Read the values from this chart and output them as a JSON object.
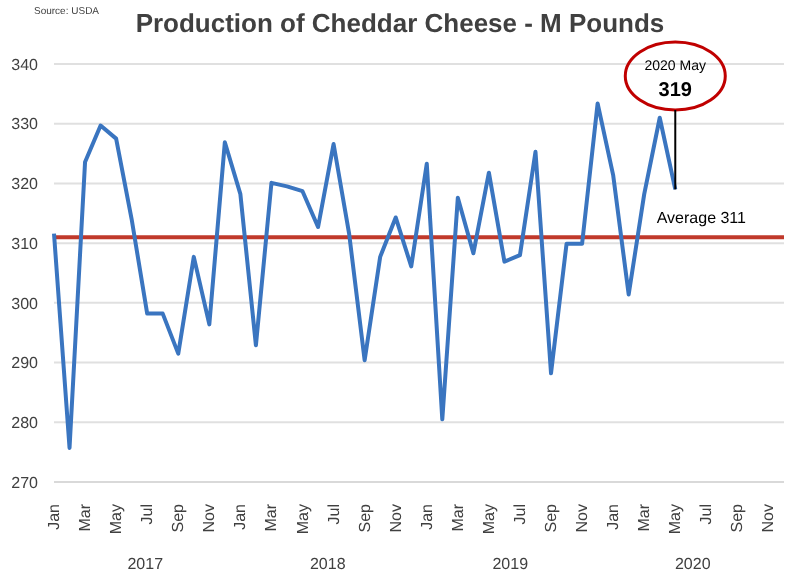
{
  "chart_data": {
    "type": "line",
    "title": "Production of Cheddar Cheese - M Pounds",
    "categories": [
      "Jan",
      null,
      "Mar",
      null,
      "May",
      null,
      "Jul",
      null,
      "Sep",
      null,
      "Nov",
      null,
      "Jan",
      null,
      "Mar",
      null,
      "May",
      null,
      "Jul",
      null,
      "Sep",
      null,
      "Nov",
      null,
      "Jan",
      null,
      "Mar",
      null,
      "May",
      null,
      "Jul",
      null,
      "Sep",
      null,
      "Nov",
      null,
      "Jan",
      null,
      "Mar",
      null,
      "May",
      null,
      "Jul",
      null,
      "Sep",
      null,
      "Nov",
      null
    ],
    "series": [
      {
        "color": "#3a75c0",
        "values": [
          311.6,
          275.7,
          323.6,
          329.7,
          327.5,
          314,
          298.2,
          298.2,
          291.5,
          307.7,
          296.4,
          326.9,
          318.2,
          292.9,
          320.1,
          319.5,
          318.7,
          312.7,
          326.6,
          311.6,
          290.4,
          307.7,
          314.3,
          306.1,
          323.3,
          280.5,
          317.6,
          308.3,
          321.8,
          306.9,
          308,
          325.3,
          288.2,
          309.9,
          309.9,
          333.4,
          321.4,
          301.4,
          318.2,
          331,
          319,
          null,
          null,
          null,
          null,
          null,
          null,
          null
        ]
      }
    ],
    "ylim": [
      270,
      340
    ],
    "yticks": [
      270,
      280,
      290,
      300,
      310,
      320,
      330,
      340
    ],
    "grid": "y",
    "legend": false,
    "marker": "none",
    "line_style": "solid",
    "ref_lines": [
      {
        "axis": "y",
        "value": 311,
        "label": "Average 311",
        "color": "#c0392b"
      }
    ],
    "annotations": [
      "Source: USDA",
      "2017",
      "2018",
      "2019",
      "2020",
      {
        "text": "2020 May 319",
        "y": 319
      }
    ]
  }
}
